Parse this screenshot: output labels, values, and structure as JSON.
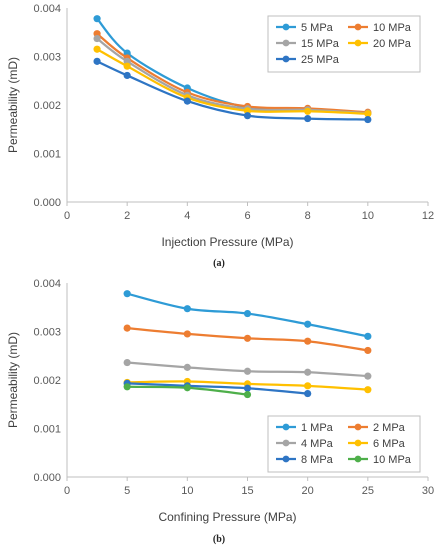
{
  "chart_data": [
    {
      "type": "line",
      "title": "",
      "xlabel": "Injection Pressure (MPa)",
      "ylabel": "Permeability (mD)",
      "xlim": [
        0,
        12
      ],
      "ylim": [
        0,
        0.004
      ],
      "xticks": [
        0,
        2,
        4,
        6,
        8,
        10,
        12
      ],
      "yticks": [
        0.0,
        0.001,
        0.002,
        0.003,
        0.004
      ],
      "ytick_labels": [
        "0.000",
        "0.001",
        "0.002",
        "0.003",
        "0.004"
      ],
      "grid": false,
      "legend_placement": "top-right",
      "legend_columns": 2,
      "x": [
        1,
        2,
        4,
        6,
        8,
        10
      ],
      "series": [
        {
          "name": "5 MPa",
          "color": "#2E9BD6",
          "values": [
            0.00378,
            0.00307,
            0.00235,
            0.00195,
            0.0019,
            0.00183
          ]
        },
        {
          "name": "10 MPa",
          "color": "#ED7D31",
          "values": [
            0.00347,
            0.00297,
            0.00226,
            0.00197,
            0.00193,
            0.00185
          ]
        },
        {
          "name": "15 MPa",
          "color": "#A5A5A5",
          "values": [
            0.00337,
            0.0029,
            0.0022,
            0.00192,
            0.0019,
            0.00183
          ]
        },
        {
          "name": "20 MPa",
          "color": "#FFC000",
          "values": [
            0.00315,
            0.0028,
            0.00215,
            0.00188,
            0.00187,
            0.00182
          ]
        },
        {
          "name": "25 MPa",
          "color": "#2E75C4",
          "values": [
            0.0029,
            0.00261,
            0.00208,
            0.00178,
            0.00172,
            0.0017
          ]
        }
      ],
      "caption": "(a)"
    },
    {
      "type": "line",
      "title": "",
      "xlabel": "Confining Pressure (MPa)",
      "ylabel": "Permeability (mD)",
      "xlim": [
        0,
        30
      ],
      "ylim": [
        0,
        0.004
      ],
      "xticks": [
        0,
        5,
        10,
        15,
        20,
        25,
        30
      ],
      "yticks": [
        0.0,
        0.001,
        0.002,
        0.003,
        0.004
      ],
      "ytick_labels": [
        "0.000",
        "0.001",
        "0.002",
        "0.003",
        "0.004"
      ],
      "grid": false,
      "legend_placement": "bottom-right",
      "legend_columns": 2,
      "series": [
        {
          "name": "1 MPa",
          "color": "#2E9BD6",
          "x": [
            5,
            10,
            15,
            20,
            25
          ],
          "values": [
            0.00378,
            0.00347,
            0.00337,
            0.00315,
            0.0029
          ]
        },
        {
          "name": "2 MPa",
          "color": "#ED7D31",
          "x": [
            5,
            10,
            15,
            20,
            25
          ],
          "values": [
            0.00307,
            0.00295,
            0.00286,
            0.0028,
            0.00261
          ]
        },
        {
          "name": "4 MPa",
          "color": "#A5A5A5",
          "x": [
            5,
            10,
            15,
            20,
            25
          ],
          "values": [
            0.00236,
            0.00226,
            0.00218,
            0.00216,
            0.00208
          ]
        },
        {
          "name": "6 MPa",
          "color": "#FFC000",
          "x": [
            5,
            10,
            15,
            20,
            25
          ],
          "values": [
            0.00195,
            0.00197,
            0.00192,
            0.00188,
            0.0018
          ]
        },
        {
          "name": "8 MPa",
          "color": "#2E75C4",
          "x": [
            5,
            10,
            15,
            20
          ],
          "values": [
            0.00193,
            0.00188,
            0.00183,
            0.00172
          ]
        },
        {
          "name": "10 MPa",
          "color": "#4EAF4A",
          "x": [
            5,
            10,
            15
          ],
          "values": [
            0.00186,
            0.00184,
            0.0017
          ]
        }
      ],
      "caption": "(b)"
    }
  ]
}
